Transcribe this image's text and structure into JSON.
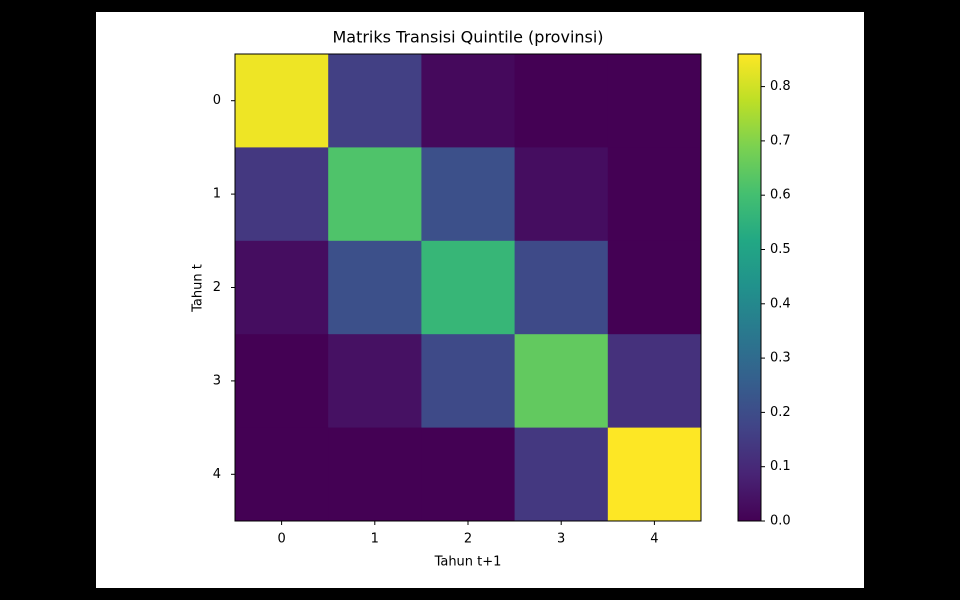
{
  "chart_data": {
    "type": "heatmap",
    "title": "Matriks Transisi Quintile (provinsi)",
    "x_label": "Tahun t+1",
    "y_label": "Tahun t",
    "x_categories": [
      0,
      1,
      2,
      3,
      4
    ],
    "y_categories": [
      0,
      1,
      2,
      3,
      4
    ],
    "z": [
      [
        0.84,
        0.16,
        0.02,
        0.0,
        0.0
      ],
      [
        0.14,
        0.62,
        0.21,
        0.03,
        0.0
      ],
      [
        0.03,
        0.21,
        0.57,
        0.19,
        0.0
      ],
      [
        0.0,
        0.04,
        0.19,
        0.65,
        0.12
      ],
      [
        0.0,
        0.0,
        0.0,
        0.14,
        0.86
      ]
    ],
    "colormap": "viridis",
    "clim": [
      0,
      0.86
    ],
    "cticks": [
      {
        "value": 0,
        "label": "0.0"
      },
      0.1,
      0.2,
      0.3,
      0.4,
      0.5,
      0.6,
      0.7,
      0.8
    ]
  }
}
